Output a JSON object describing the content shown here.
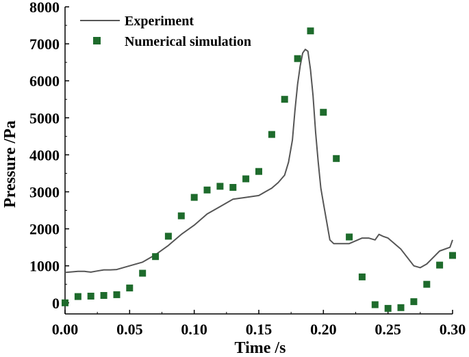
{
  "chart_data": {
    "type": "line",
    "xlabel": "Time /s",
    "ylabel": "Pressure /Pa",
    "xlim": [
      0,
      0.3
    ],
    "ylim": [
      -300,
      8000
    ],
    "xticks": [
      0.0,
      0.05,
      0.1,
      0.15,
      0.2,
      0.25,
      0.3
    ],
    "xtick_labels": [
      "0.00",
      "0.05",
      "0.10",
      "0.15",
      "0.20",
      "0.25",
      "0.30"
    ],
    "yticks": [
      0,
      1000,
      2000,
      3000,
      4000,
      5000,
      6000,
      7000,
      8000
    ],
    "ytick_labels": [
      "0",
      "1000",
      "2000",
      "3000",
      "4000",
      "5000",
      "6000",
      "7000",
      "8000"
    ],
    "legend_position": "top-left",
    "series": [
      {
        "name": "Experiment",
        "style": "line",
        "color": "#555555",
        "x": [
          0.0,
          0.01,
          0.015,
          0.02,
          0.025,
          0.03,
          0.035,
          0.04,
          0.05,
          0.06,
          0.07,
          0.08,
          0.09,
          0.1,
          0.11,
          0.12,
          0.13,
          0.14,
          0.15,
          0.155,
          0.16,
          0.165,
          0.17,
          0.173,
          0.176,
          0.178,
          0.18,
          0.182,
          0.184,
          0.186,
          0.188,
          0.19,
          0.192,
          0.194,
          0.196,
          0.198,
          0.2,
          0.202,
          0.205,
          0.208,
          0.212,
          0.22,
          0.23,
          0.235,
          0.24,
          0.243,
          0.246,
          0.25,
          0.26,
          0.27,
          0.275,
          0.28,
          0.29,
          0.298,
          0.3
        ],
        "values": [
          820,
          850,
          850,
          830,
          860,
          890,
          890,
          900,
          1000,
          1100,
          1300,
          1550,
          1850,
          2100,
          2400,
          2600,
          2800,
          2850,
          2900,
          3000,
          3100,
          3250,
          3450,
          3800,
          4400,
          5200,
          5900,
          6400,
          6750,
          6850,
          6800,
          6300,
          5600,
          4600,
          3800,
          3100,
          2700,
          2300,
          1700,
          1600,
          1600,
          1600,
          1750,
          1750,
          1700,
          1850,
          1800,
          1750,
          1450,
          1000,
          950,
          1050,
          1400,
          1500,
          1700
        ]
      },
      {
        "name": "Numerical simulation",
        "style": "marker",
        "marker": "square",
        "color": "#1e6b2c",
        "x": [
          0.0,
          0.01,
          0.02,
          0.03,
          0.04,
          0.05,
          0.06,
          0.07,
          0.08,
          0.09,
          0.1,
          0.11,
          0.12,
          0.13,
          0.14,
          0.15,
          0.16,
          0.17,
          0.18,
          0.19,
          0.2,
          0.21,
          0.22,
          0.23,
          0.24,
          0.25,
          0.26,
          0.27,
          0.28,
          0.29,
          0.3
        ],
        "values": [
          0,
          170,
          180,
          200,
          220,
          400,
          800,
          1250,
          1800,
          2350,
          2850,
          3050,
          3150,
          3120,
          3350,
          3550,
          4550,
          5500,
          6600,
          7350,
          5150,
          3900,
          1780,
          700,
          -50,
          -150,
          -130,
          30,
          500,
          1020,
          1280
        ]
      }
    ]
  }
}
